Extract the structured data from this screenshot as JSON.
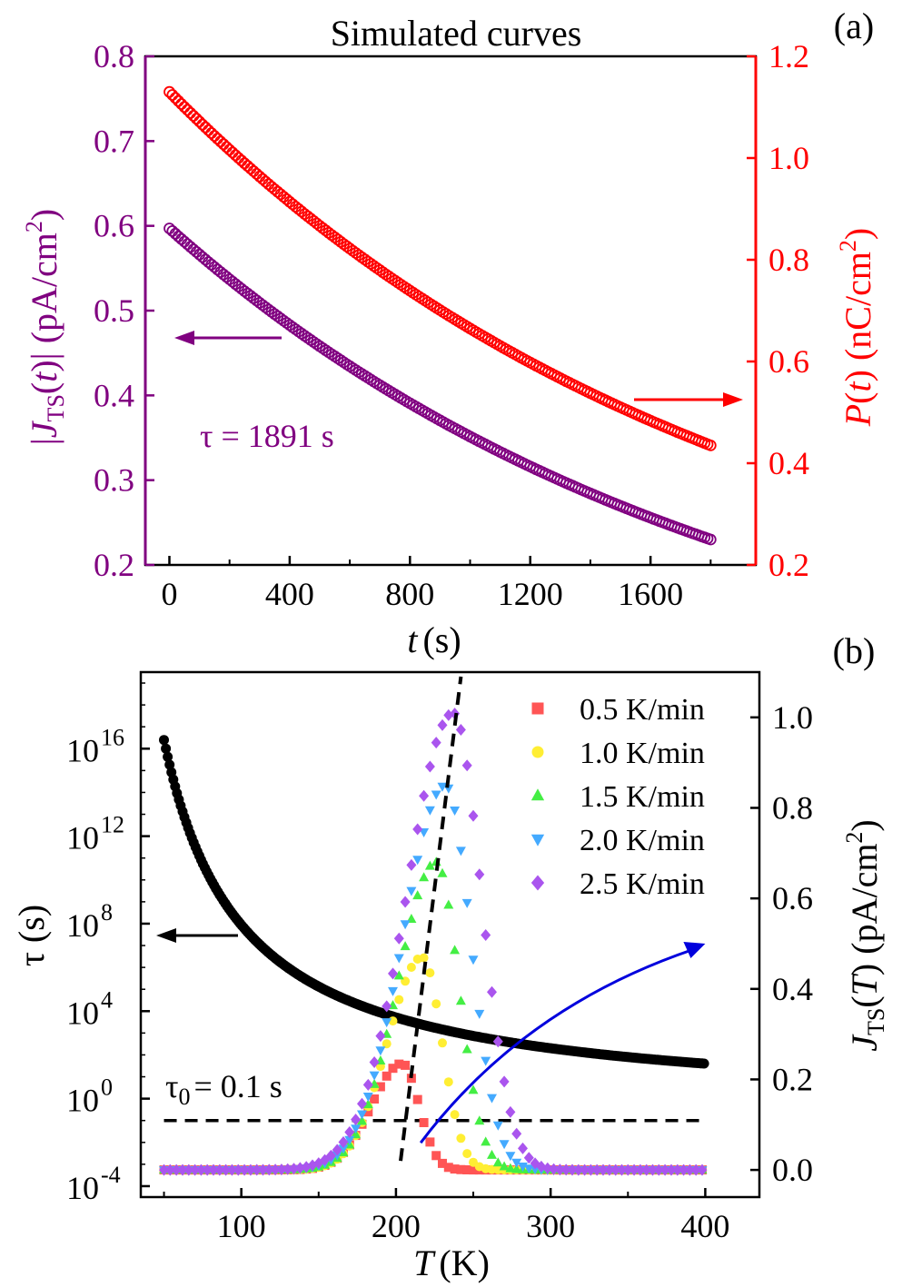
{
  "chart_data": [
    {
      "panel": "(a)",
      "type": "scatter",
      "title": "Simulated curves",
      "xlabel_italic": "t",
      "xlabel_unit": "(s)",
      "xlim": [
        -80,
        1950
      ],
      "xticks": [
        0,
        400,
        800,
        1200,
        1600
      ],
      "ylabel_left": "|J_TS(t)| (pA/cm^2)",
      "ylabel_left_parts": {
        "bar": "|",
        "J": "J",
        "sub": "TS",
        "t": "t",
        "unit": " (pA/cm",
        "sup": "2",
        "close": ")"
      },
      "ylim_left": [
        0.2,
        0.8
      ],
      "yticks_left": [
        "0.2",
        "0.3",
        "0.4",
        "0.5",
        "0.6",
        "0.7",
        "0.8"
      ],
      "ylabel_right": "P(t) (nC/cm^2)",
      "ylabel_right_parts": {
        "P": "P",
        "t": "t",
        "unit": " (nC/cm",
        "sup": "2",
        "close": ")"
      },
      "ylim_right": [
        0.2,
        1.2
      ],
      "yticks_right": [
        "0.2",
        "0.4",
        "0.6",
        "0.8",
        "1.0",
        "1.2"
      ],
      "annotation": "τ = 1891 s",
      "tau": 1891,
      "series": [
        {
          "name": "|J_TS(t)|",
          "axis": "left",
          "color": "#800080",
          "t_start": 0,
          "t_end": 1800,
          "y0": 0.597,
          "y_end": 0.23
        },
        {
          "name": "P(t)",
          "axis": "right",
          "color": "#ff0000",
          "t_start": 0,
          "t_end": 1800,
          "y0": 1.13,
          "y_end": 0.435
        }
      ]
    },
    {
      "panel": "(b)",
      "type": "scatter",
      "xlabel_italic": "T",
      "xlabel_unit": "(K)",
      "xlim": [
        35,
        435
      ],
      "xticks": [
        100,
        200,
        300,
        400
      ],
      "ylabel_left": "τ (s)",
      "yscale_left": "log",
      "ylim_left_log10": [
        -4.5,
        19.5
      ],
      "yticks_left": [
        {
          "base": "10",
          "exp": "-4"
        },
        {
          "base": "10",
          "exp": "0"
        },
        {
          "base": "10",
          "exp": "4"
        },
        {
          "base": "10",
          "exp": "8"
        },
        {
          "base": "10",
          "exp": "12"
        },
        {
          "base": "10",
          "exp": "16"
        }
      ],
      "ylabel_right": "J_TS(T) (pA/cm^2)",
      "ylabel_right_parts": {
        "J": "J",
        "sub": "TS",
        "T": "T",
        "unit": " (pA/cm",
        "sup": "2",
        "close": ")"
      },
      "ylim_right": [
        -0.06,
        1.1
      ],
      "yticks_right": [
        "0.0",
        "0.2",
        "0.4",
        "0.6",
        "0.8",
        "1.0"
      ],
      "tau0_label": {
        "tau": "τ",
        "sub": "0",
        "rest": "= 0.1 s"
      },
      "tau0": 0.1,
      "tau_curve": {
        "color": "#000000",
        "T_start": 50,
        "T_end": 400,
        "log10_tau_at_50": 16.4,
        "log10_tau_at_400": 1.6
      },
      "guide_line": {
        "style": "dashed",
        "color": "#000000",
        "from": [
          203,
          0.02
        ],
        "to": [
          242,
          1.09
        ]
      },
      "fit_arrow": {
        "color": "#0000dd",
        "from": [
          216,
          0.06
        ],
        "to": [
          400,
          0.5
        ]
      },
      "series": [
        {
          "name": "0.5 K/min",
          "color": "#ff5555",
          "marker": "square",
          "peak_T": 204,
          "peak_J": 0.235
        },
        {
          "name": "1.0 K/min",
          "color": "#ffee33",
          "marker": "circle",
          "peak_T": 217,
          "peak_J": 0.47
        },
        {
          "name": "1.5 K/min",
          "color": "#44ee44",
          "marker": "triangle-up",
          "peak_T": 226,
          "peak_J": 0.68
        },
        {
          "name": "2.0 K/min",
          "color": "#44aaff",
          "marker": "triangle-down",
          "peak_T": 232,
          "peak_J": 0.85
        },
        {
          "name": "2.5 K/min",
          "color": "#aa55ee",
          "marker": "diamond",
          "peak_T": 237,
          "peak_J": 1.01
        }
      ]
    }
  ]
}
